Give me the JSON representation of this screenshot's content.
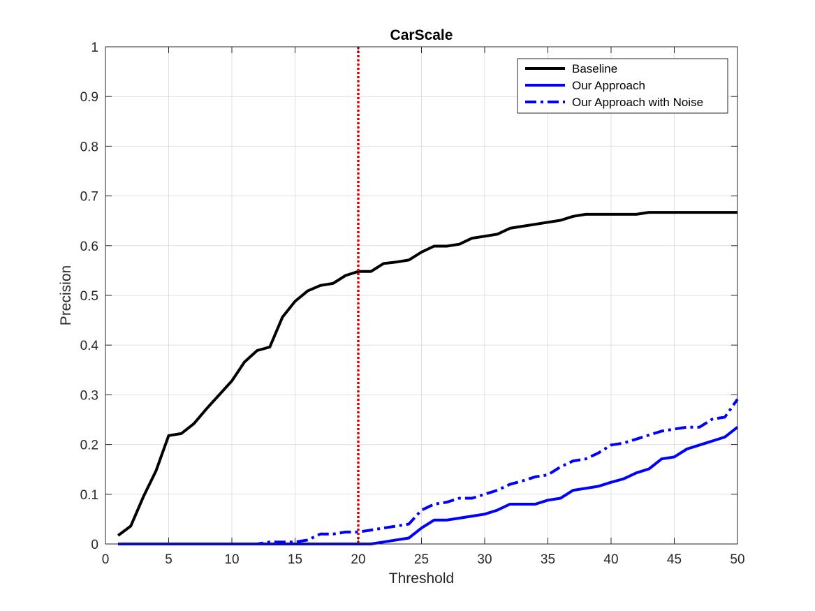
{
  "chart_data": {
    "type": "line",
    "title": "CarScale",
    "xlabel": "Threshold",
    "ylabel": "Precision",
    "xlim": [
      0,
      50
    ],
    "ylim": [
      0,
      1
    ],
    "xticks": [
      0,
      5,
      10,
      15,
      20,
      25,
      30,
      35,
      40,
      45,
      50
    ],
    "yticks": [
      0,
      0.1,
      0.2,
      0.3,
      0.4,
      0.5,
      0.6,
      0.7,
      0.8,
      0.9,
      1
    ],
    "xtick_labels": [
      "0",
      "5",
      "10",
      "15",
      "20",
      "25",
      "30",
      "35",
      "40",
      "45",
      "50"
    ],
    "ytick_labels": [
      "0",
      "0.1",
      "0.2",
      "0.3",
      "0.4",
      "0.5",
      "0.6",
      "0.7",
      "0.8",
      "0.9",
      "1"
    ],
    "grid": true,
    "legend_position": "top-right",
    "x": [
      1,
      2,
      3,
      4,
      5,
      6,
      7,
      8,
      9,
      10,
      11,
      12,
      13,
      14,
      15,
      16,
      17,
      18,
      19,
      20,
      21,
      22,
      23,
      24,
      25,
      26,
      27,
      28,
      29,
      30,
      31,
      32,
      33,
      34,
      35,
      36,
      37,
      38,
      39,
      40,
      41,
      42,
      43,
      44,
      45,
      46,
      47,
      48,
      49,
      50
    ],
    "series": [
      {
        "name": "Baseline",
        "color": "#000000",
        "style": "solid",
        "values": [
          0.017,
          0.036,
          0.095,
          0.147,
          0.218,
          0.222,
          0.242,
          0.272,
          0.3,
          0.328,
          0.366,
          0.389,
          0.396,
          0.456,
          0.488,
          0.509,
          0.52,
          0.524,
          0.54,
          0.548,
          0.548,
          0.564,
          0.567,
          0.571,
          0.587,
          0.599,
          0.599,
          0.603,
          0.615,
          0.619,
          0.623,
          0.635,
          0.639,
          0.643,
          0.647,
          0.651,
          0.659,
          0.663,
          0.663,
          0.663,
          0.663,
          0.663,
          0.667,
          0.667,
          0.667,
          0.667,
          0.667,
          0.667,
          0.667,
          0.667
        ]
      },
      {
        "name": "Our Approach",
        "color": "#0000ff",
        "style": "solid",
        "values": [
          0,
          0,
          0,
          0,
          0,
          0,
          0,
          0,
          0,
          0,
          0,
          0,
          0,
          0,
          0,
          0,
          0,
          0,
          0,
          0,
          0,
          0.004,
          0.008,
          0.012,
          0.032,
          0.048,
          0.048,
          0.052,
          0.056,
          0.06,
          0.068,
          0.08,
          0.08,
          0.08,
          0.088,
          0.092,
          0.108,
          0.112,
          0.116,
          0.124,
          0.131,
          0.143,
          0.151,
          0.171,
          0.175,
          0.191,
          0.199,
          0.207,
          0.215,
          0.235
        ]
      },
      {
        "name": "Our Approach with Noise",
        "color": "#0000ff",
        "style": "dashdot",
        "values": [
          0,
          0,
          0,
          0,
          0,
          0,
          0,
          0,
          0,
          0,
          0,
          0,
          0.004,
          0.004,
          0.004,
          0.008,
          0.02,
          0.02,
          0.024,
          0.024,
          0.028,
          0.032,
          0.036,
          0.04,
          0.068,
          0.08,
          0.084,
          0.092,
          0.092,
          0.1,
          0.108,
          0.12,
          0.127,
          0.135,
          0.139,
          0.155,
          0.167,
          0.171,
          0.183,
          0.199,
          0.203,
          0.211,
          0.219,
          0.227,
          0.231,
          0.235,
          0.235,
          0.251,
          0.255,
          0.291
        ]
      }
    ],
    "reference_line": {
      "x": 20,
      "color": "#dd0000",
      "style": "dotted"
    }
  }
}
